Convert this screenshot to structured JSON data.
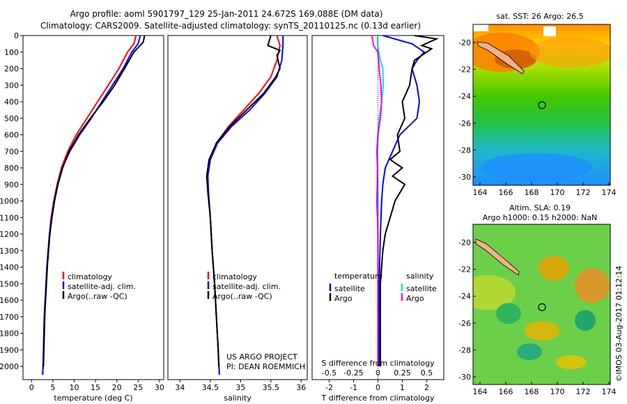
{
  "header": {
    "title_line1": "Argo profile: aoml 5901797_129 25-Jan-2011 24.672S 169.088E (DM data)",
    "title_line2": "Climatology: CARS2009. Satellite-adjusted climatology: synTS_20110125.nc (0.13d earlier)"
  },
  "colors": {
    "climatology": "#ff0000",
    "satellite": "#0000ff",
    "argo": "#000000",
    "sat_salinity": "#00e5ee",
    "argo_salinity": "#ff00ff"
  },
  "depth_ticks": [
    "0",
    "100",
    "200",
    "300",
    "400",
    "500",
    "600",
    "700",
    "800",
    "900",
    "1000",
    "1100",
    "1200",
    "1300",
    "1400",
    "1500",
    "1600",
    "1700",
    "1800",
    "1900",
    "2000"
  ],
  "panels": {
    "temperature": {
      "xlabel": "temperature (deg C)",
      "xticks": [
        "0",
        "5",
        "10",
        "15",
        "20",
        "25",
        "30"
      ],
      "legend": [
        "climatology",
        "satellite-adj. clim.",
        "Argo(..raw -QC)"
      ]
    },
    "salinity": {
      "xlabel": "salinity",
      "xticks": [
        "34",
        "34.5",
        "35",
        "35.5",
        "36"
      ],
      "legend": [
        "climatology",
        "satellite-adj. clim.",
        "Argo(..raw -QC)"
      ],
      "credit1": "US ARGO PROJECT",
      "credit2": "PI: DEAN ROEMMICH"
    },
    "difference": {
      "xlabel": "T difference from climatology",
      "top_label": "S difference from climatology",
      "t_ticks": [
        "-2",
        "-1",
        "0",
        "1",
        "2"
      ],
      "s_ticks": [
        "-0.5",
        "-0.25",
        "0",
        "0.25",
        "0.5"
      ],
      "legend_temp_title": "temperature",
      "legend_sal_title": "salinity",
      "legend_items": [
        "satellite",
        "Argo",
        "satellite",
        "Argo"
      ]
    }
  },
  "maps": {
    "sst_title": "sat. SST: 26 Argo: 26.5",
    "sla_title1": "Altim. SLA: 0.19",
    "sla_title2": "Argo h1000: 0.15 h2000: NaN",
    "lon_ticks": [
      "164",
      "166",
      "168",
      "170",
      "172",
      "174"
    ],
    "lat_ticks": [
      "-20",
      "-22",
      "-24",
      "-26",
      "-28",
      "-30"
    ],
    "stamp": "©IMOS 03-Aug-2017 01:12:14"
  },
  "chart_data": [
    {
      "type": "line",
      "title": "",
      "xlabel": "temperature (deg C)",
      "ylabel": "",
      "xlim": [
        -2,
        31
      ],
      "ylim": [
        2080,
        0
      ],
      "series": [
        {
          "name": "climatology",
          "color": "#ff0000",
          "points": [
            [
              24.5,
              0
            ],
            [
              24,
              50
            ],
            [
              22.5,
              100
            ],
            [
              20.5,
              200
            ],
            [
              18,
              300
            ],
            [
              15.5,
              400
            ],
            [
              13,
              500
            ],
            [
              10.5,
              600
            ],
            [
              8.5,
              700
            ],
            [
              7,
              800
            ],
            [
              6,
              900
            ],
            [
              5.2,
              1000
            ],
            [
              4.6,
              1100
            ],
            [
              4.2,
              1200
            ],
            [
              3.9,
              1300
            ],
            [
              3.6,
              1400
            ],
            [
              3.4,
              1500
            ],
            [
              3.2,
              1600
            ],
            [
              3.0,
              1700
            ],
            [
              2.9,
              1800
            ],
            [
              2.8,
              1900
            ],
            [
              2.7,
              2000
            ],
            [
              2.6,
              2050
            ]
          ]
        },
        {
          "name": "satellite-adj. clim.",
          "color": "#0000ff",
          "points": [
            [
              25.5,
              0
            ],
            [
              25,
              50
            ],
            [
              23.5,
              100
            ],
            [
              21.5,
              200
            ],
            [
              19,
              300
            ],
            [
              16.5,
              400
            ],
            [
              14,
              500
            ],
            [
              11.3,
              600
            ],
            [
              9,
              700
            ],
            [
              7.2,
              800
            ],
            [
              6.1,
              900
            ],
            [
              5.3,
              1000
            ],
            [
              4.7,
              1100
            ],
            [
              4.2,
              1200
            ],
            [
              3.9,
              1300
            ],
            [
              3.6,
              1400
            ],
            [
              3.4,
              1500
            ],
            [
              3.2,
              1600
            ],
            [
              3.0,
              1700
            ],
            [
              2.9,
              1800
            ],
            [
              2.8,
              1900
            ],
            [
              2.7,
              2000
            ],
            [
              2.6,
              2050
            ]
          ]
        },
        {
          "name": "Argo(..raw -QC)",
          "color": "#000000",
          "points": [
            [
              26.5,
              0
            ],
            [
              26.2,
              40
            ],
            [
              24,
              100
            ],
            [
              21.8,
              200
            ],
            [
              19.5,
              300
            ],
            [
              16.8,
              400
            ],
            [
              13.8,
              500
            ],
            [
              11,
              600
            ],
            [
              8.8,
              700
            ],
            [
              7.3,
              800
            ],
            [
              6.2,
              900
            ],
            [
              5.4,
              1000
            ],
            [
              4.8,
              1100
            ],
            [
              4.3,
              1200
            ],
            [
              4.0,
              1300
            ],
            [
              3.7,
              1400
            ],
            [
              3.5,
              1500
            ],
            [
              3.3,
              1600
            ],
            [
              3.1,
              1700
            ],
            [
              3.0,
              1800
            ],
            [
              2.9,
              1900
            ],
            [
              2.8,
              2000
            ]
          ]
        }
      ]
    },
    {
      "type": "line",
      "title": "",
      "xlabel": "salinity",
      "ylabel": "",
      "xlim": [
        33.8,
        36.1
      ],
      "ylim": [
        2080,
        0
      ],
      "series": [
        {
          "name": "climatology",
          "color": "#ff0000",
          "points": [
            [
              35.6,
              0
            ],
            [
              35.65,
              60
            ],
            [
              35.6,
              150
            ],
            [
              35.5,
              250
            ],
            [
              35.3,
              350
            ],
            [
              35.05,
              450
            ],
            [
              34.8,
              550
            ],
            [
              34.6,
              650
            ],
            [
              34.5,
              750
            ],
            [
              34.45,
              850
            ],
            [
              34.47,
              950
            ],
            [
              34.5,
              1100
            ],
            [
              34.53,
              1300
            ],
            [
              34.57,
              1500
            ],
            [
              34.6,
              1700
            ],
            [
              34.63,
              1900
            ],
            [
              34.65,
              2050
            ]
          ]
        },
        {
          "name": "satellite-adj. clim.",
          "color": "#0000ff",
          "points": [
            [
              35.7,
              0
            ],
            [
              35.7,
              60
            ],
            [
              35.68,
              150
            ],
            [
              35.6,
              250
            ],
            [
              35.4,
              350
            ],
            [
              35.15,
              450
            ],
            [
              34.85,
              550
            ],
            [
              34.62,
              650
            ],
            [
              34.5,
              750
            ],
            [
              34.46,
              850
            ],
            [
              34.47,
              950
            ],
            [
              34.5,
              1100
            ],
            [
              34.53,
              1300
            ],
            [
              34.57,
              1500
            ],
            [
              34.6,
              1700
            ],
            [
              34.63,
              1900
            ],
            [
              34.65,
              2050
            ]
          ]
        },
        {
          "name": "Argo(..raw -QC)",
          "color": "#000000",
          "points": [
            [
              35.5,
              0
            ],
            [
              35.45,
              60
            ],
            [
              35.65,
              90
            ],
            [
              35.6,
              120
            ],
            [
              35.65,
              200
            ],
            [
              35.58,
              250
            ],
            [
              35.38,
              350
            ],
            [
              35.1,
              450
            ],
            [
              34.82,
              550
            ],
            [
              34.6,
              650
            ],
            [
              34.48,
              750
            ],
            [
              34.44,
              850
            ],
            [
              34.46,
              950
            ],
            [
              34.5,
              1100
            ],
            [
              34.53,
              1300
            ],
            [
              34.57,
              1500
            ],
            [
              34.6,
              1700
            ],
            [
              34.63,
              1900
            ],
            [
              34.64,
              2000
            ]
          ]
        }
      ]
    },
    {
      "type": "line",
      "title": "",
      "xlabel": "T difference from climatology",
      "ylabel": "",
      "xlim": [
        -2.7,
        2.7
      ],
      "ylim": [
        2080,
        0
      ],
      "series": [
        {
          "name": "temperature satellite",
          "color": "#0000ff",
          "points": [
            [
              0.2,
              0
            ],
            [
              1.4,
              50
            ],
            [
              1.9,
              100
            ],
            [
              1.6,
              150
            ],
            [
              1.4,
              200
            ],
            [
              1.6,
              300
            ],
            [
              1.7,
              400
            ],
            [
              1.6,
              500
            ],
            [
              0.9,
              600
            ],
            [
              0.6,
              700
            ],
            [
              0.3,
              800
            ],
            [
              0.2,
              900
            ],
            [
              0.15,
              1000
            ],
            [
              0.1,
              1200
            ],
            [
              0.05,
              1500
            ],
            [
              0.05,
              2000
            ]
          ]
        },
        {
          "name": "temperature Argo",
          "color": "#000000",
          "points": [
            [
              1.5,
              0
            ],
            [
              2.4,
              20
            ],
            [
              1.8,
              60
            ],
            [
              2.2,
              80
            ],
            [
              1.5,
              150
            ],
            [
              1.4,
              200
            ],
            [
              1.3,
              300
            ],
            [
              1.0,
              400
            ],
            [
              1.1,
              500
            ],
            [
              0.8,
              600
            ],
            [
              0.9,
              700
            ],
            [
              0.5,
              750
            ],
            [
              1.0,
              800
            ],
            [
              0.6,
              850
            ],
            [
              1.1,
              900
            ],
            [
              0.7,
              1000
            ],
            [
              0.5,
              1100
            ],
            [
              0.3,
              1200
            ],
            [
              0.2,
              1300
            ],
            [
              0.1,
              1500
            ],
            [
              0.1,
              2000
            ]
          ]
        },
        {
          "name": "salinity satellite",
          "color": "#00e5ee",
          "points": [
            [
              -0.02,
              0
            ],
            [
              -0.01,
              60
            ],
            [
              0.1,
              150
            ],
            [
              0.2,
              200
            ],
            [
              0.22,
              300
            ],
            [
              0.15,
              400
            ],
            [
              0.05,
              500
            ],
            [
              0.0,
              600
            ],
            [
              -0.02,
              700
            ],
            [
              -0.02,
              800
            ],
            [
              0.0,
              900
            ],
            [
              0.0,
              1000
            ],
            [
              0.0,
              1500
            ],
            [
              0.0,
              2000
            ]
          ]
        },
        {
          "name": "salinity Argo",
          "color": "#ff00ff",
          "points": [
            [
              -0.25,
              0
            ],
            [
              -0.18,
              60
            ],
            [
              0.0,
              100
            ],
            [
              0.05,
              200
            ],
            [
              0.12,
              300
            ],
            [
              0.15,
              400
            ],
            [
              0.1,
              500
            ],
            [
              0.0,
              600
            ],
            [
              -0.05,
              700
            ],
            [
              -0.02,
              800
            ],
            [
              -0.03,
              900
            ],
            [
              -0.05,
              1000
            ],
            [
              -0.02,
              1100
            ],
            [
              0.0,
              1200
            ],
            [
              0.0,
              1500
            ],
            [
              0.0,
              2000
            ]
          ]
        }
      ]
    }
  ]
}
